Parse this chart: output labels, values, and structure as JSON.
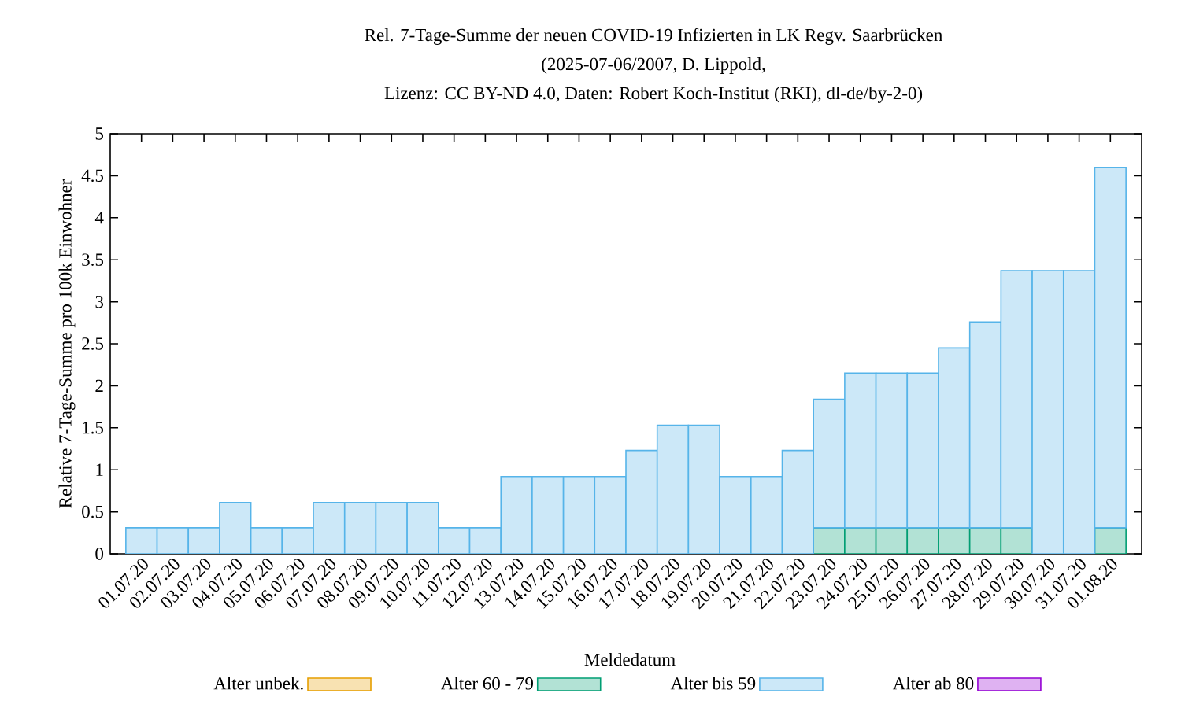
{
  "chart_data": {
    "type": "bar",
    "title": "Rel. 7-Tage-Summe der neuen COVID-19 Infizierten in LK Regv. Saarbrücken",
    "subtitle": "(2025-07-06/2007, D. Lippold,",
    "annotations": [
      "Lizenz: CC BY-ND 4.0, Daten: Robert Koch-Institut (RKI), dl-de/by-2-0)"
    ],
    "xlabel": "Meldedatum",
    "ylabel": "Relative 7-Tage-Summe pro 100k Einwohner",
    "categories": [
      "01.07.20",
      "02.07.20",
      "03.07.20",
      "04.07.20",
      "05.07.20",
      "06.07.20",
      "07.07.20",
      "08.07.20",
      "09.07.20",
      "10.07.20",
      "11.07.20",
      "12.07.20",
      "13.07.20",
      "14.07.20",
      "15.07.20",
      "16.07.20",
      "17.07.20",
      "18.07.20",
      "19.07.20",
      "20.07.20",
      "21.07.20",
      "22.07.20",
      "23.07.20",
      "24.07.20",
      "25.07.20",
      "26.07.20",
      "27.07.20",
      "28.07.20",
      "29.07.20",
      "30.07.20",
      "31.07.20",
      "01.08.20"
    ],
    "stacked": true,
    "series": [
      {
        "name": "Alter unbek.",
        "color": "#e69f00",
        "values": [
          null,
          null,
          null,
          null,
          null,
          null,
          null,
          null,
          null,
          null,
          null,
          null,
          null,
          null,
          null,
          null,
          null,
          null,
          null,
          null,
          null,
          null,
          null,
          null,
          null,
          null,
          null,
          null,
          null,
          null,
          null,
          null
        ]
      },
      {
        "name": "Alter 60 - 79",
        "color": "#009e73",
        "values": [
          null,
          null,
          null,
          null,
          null,
          null,
          null,
          null,
          null,
          null,
          null,
          null,
          null,
          null,
          null,
          null,
          null,
          null,
          null,
          null,
          null,
          null,
          0.31,
          0.31,
          0.31,
          0.31,
          0.31,
          0.31,
          0.31,
          null,
          null,
          0.31
        ]
      },
      {
        "name": "Alter bis 59",
        "color": "#56b4e9",
        "values": [
          0.31,
          0.31,
          0.31,
          0.61,
          0.31,
          0.31,
          0.61,
          0.61,
          0.61,
          0.61,
          0.31,
          0.31,
          0.92,
          0.92,
          0.92,
          0.92,
          1.23,
          1.53,
          1.53,
          0.92,
          0.92,
          1.23,
          1.53,
          1.84,
          1.84,
          1.84,
          2.14,
          2.45,
          3.06,
          3.37,
          3.37,
          4.29
        ]
      },
      {
        "name": "Alter ab 80",
        "color": "#9400d3",
        "values": [
          null,
          null,
          null,
          null,
          null,
          null,
          null,
          null,
          null,
          null,
          null,
          null,
          null,
          null,
          null,
          null,
          null,
          null,
          null,
          null,
          null,
          null,
          null,
          null,
          null,
          null,
          null,
          null,
          null,
          null,
          null,
          null
        ]
      }
    ],
    "ylim": [
      0,
      5
    ],
    "yticks": [
      0,
      0.5,
      1,
      1.5,
      2,
      2.5,
      3,
      3.5,
      4,
      4.5,
      5
    ],
    "legend": "bottom"
  }
}
